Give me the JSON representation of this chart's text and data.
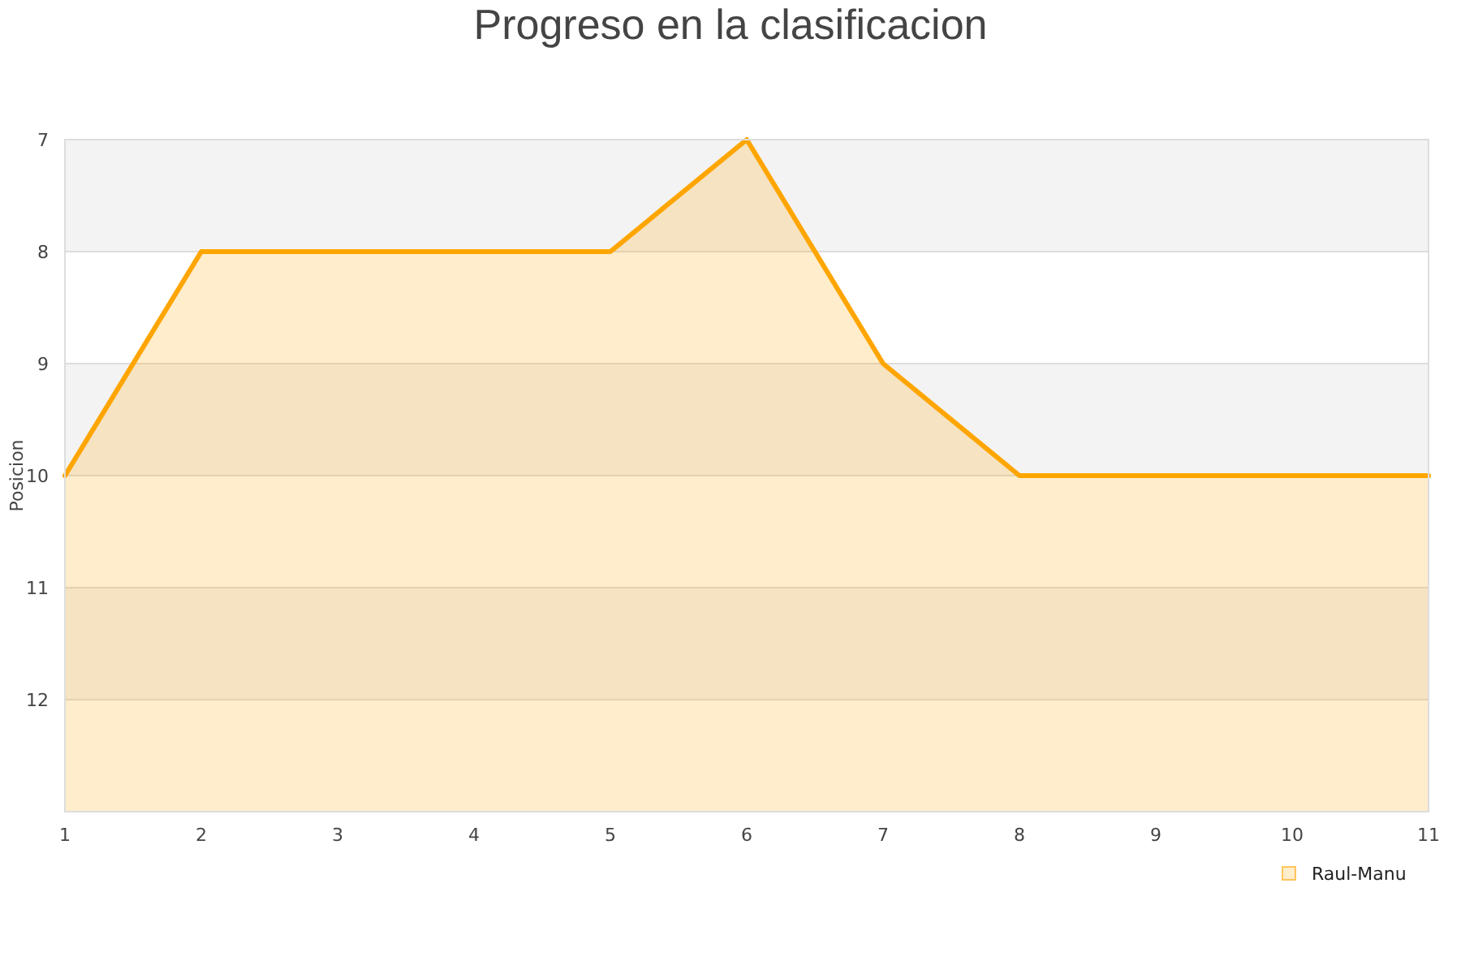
{
  "chart_data": {
    "type": "line",
    "title": "Progreso en la clasificacion",
    "ylabel": "Posicion",
    "x": [
      1,
      2,
      3,
      4,
      5,
      6,
      7,
      8,
      9,
      10,
      11
    ],
    "series": [
      {
        "name": "Raul-Manu",
        "color": "#ffa500",
        "values": [
          10,
          8,
          8,
          8,
          8,
          7,
          9,
          10,
          10,
          10,
          10
        ],
        "lower": [
          10,
          8,
          8,
          8,
          8,
          7,
          9,
          10,
          10,
          10,
          10
        ],
        "upper": [
          13,
          13,
          13,
          13,
          13,
          13,
          13,
          13,
          13,
          13,
          13
        ]
      }
    ],
    "xlim": [
      1,
      11
    ],
    "xticks": [
      1,
      2,
      3,
      4,
      5,
      6,
      7,
      8,
      9,
      10,
      11
    ],
    "ylim": [
      13,
      7
    ],
    "yticks": [
      7,
      8,
      9,
      10,
      11,
      12
    ],
    "bands": [
      {
        "axis": "y",
        "from": 7,
        "to": 8,
        "color": "#f3f3f3"
      },
      {
        "axis": "y",
        "from": 9,
        "to": 10,
        "color": "#f3f3f3"
      },
      {
        "axis": "y",
        "from": 11,
        "to": 12,
        "color": "#f3f3f3"
      }
    ],
    "grid": "y",
    "legend": "bottom right",
    "marker": "none",
    "line_style": "solid"
  }
}
